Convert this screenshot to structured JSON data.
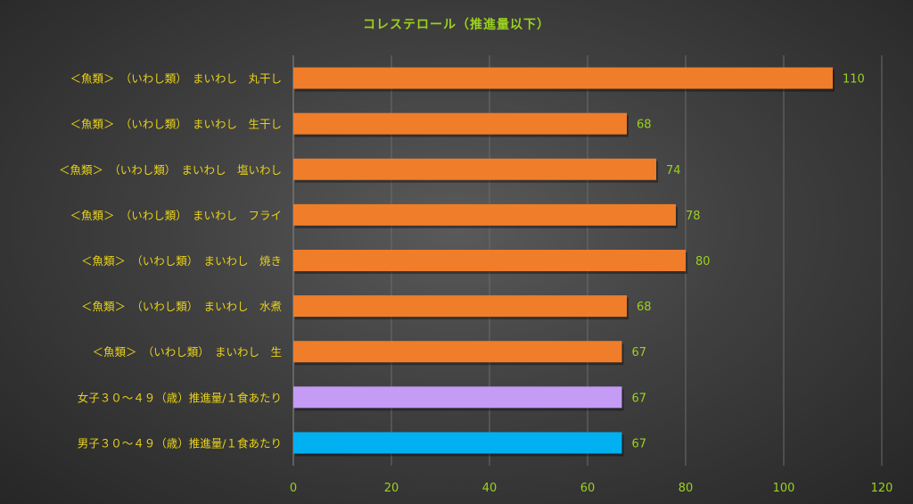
{
  "chart_data": {
    "type": "bar",
    "orientation": "horizontal",
    "title": "コレステロール（推進量以下）",
    "categories": [
      "＜魚類＞　（いわし類）　まいわし　丸干し",
      "＜魚類＞　（いわし類）　まいわし　生干し",
      "＜魚類＞　（いわし類）　まいわし　塩いわし",
      "＜魚類＞　（いわし類）　まいわし　フライ",
      "＜魚類＞　（いわし類）　まいわし　焼き",
      "＜魚類＞　（いわし類）　まいわし　水煮",
      "＜魚類＞　（いわし類）　まいわし　生",
      "女子３０～４９（歳）推進量/１食あたり",
      "男子３０～４９（歳）推進量/１食あたり"
    ],
    "values": [
      110,
      68,
      74,
      78,
      80,
      68,
      67,
      67,
      67
    ],
    "value_labels": [
      "110",
      "68",
      "74",
      "78",
      "80",
      "68",
      "67",
      "67",
      "67"
    ],
    "bar_colors": [
      "#f07d2a",
      "#f07d2a",
      "#f07d2a",
      "#f07d2a",
      "#f07d2a",
      "#f07d2a",
      "#f07d2a",
      "#c49bf5",
      "#00b0f0"
    ],
    "xlim": [
      0,
      120
    ],
    "x_ticks": [
      "0",
      "20",
      "40",
      "60",
      "80",
      "100",
      "120"
    ],
    "grid": true,
    "legend": false,
    "colors": {
      "title": "#9bd11f",
      "category_label": "#e8d21a",
      "tick_label": "#9bd11f",
      "value_label": "#9bd11f",
      "gridline": "#6b6b6b"
    }
  }
}
